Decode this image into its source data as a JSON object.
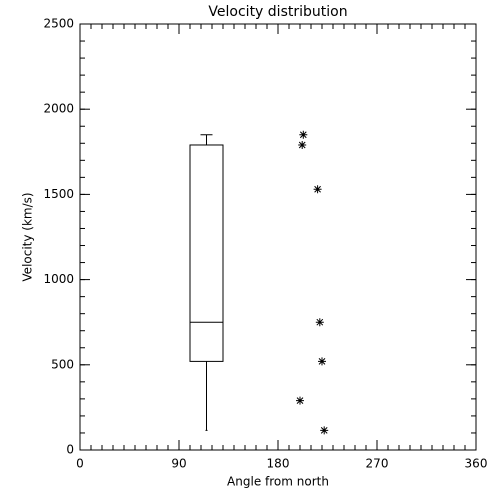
{
  "chart_data": {
    "type": "box_scatter",
    "title": "Velocity distribution",
    "xlabel": "Angle from north",
    "ylabel": "Velocity (km/s)",
    "xlim": [
      0,
      360
    ],
    "xticks": [
      0,
      90,
      180,
      270,
      360
    ],
    "x_minor_step": 10,
    "ylim": [
      0,
      2500
    ],
    "yticks": [
      0,
      500,
      1000,
      1500,
      2000,
      2500
    ],
    "y_minor_step": 100,
    "box": {
      "x": 115,
      "min": 115,
      "q1": 520,
      "median": 750,
      "q3": 1790,
      "max": 1850
    },
    "points": {
      "x": [
        203,
        202,
        216,
        218,
        220,
        200,
        222
      ],
      "y": [
        1850,
        1790,
        1530,
        750,
        520,
        290,
        115
      ]
    },
    "color": "#000000"
  }
}
